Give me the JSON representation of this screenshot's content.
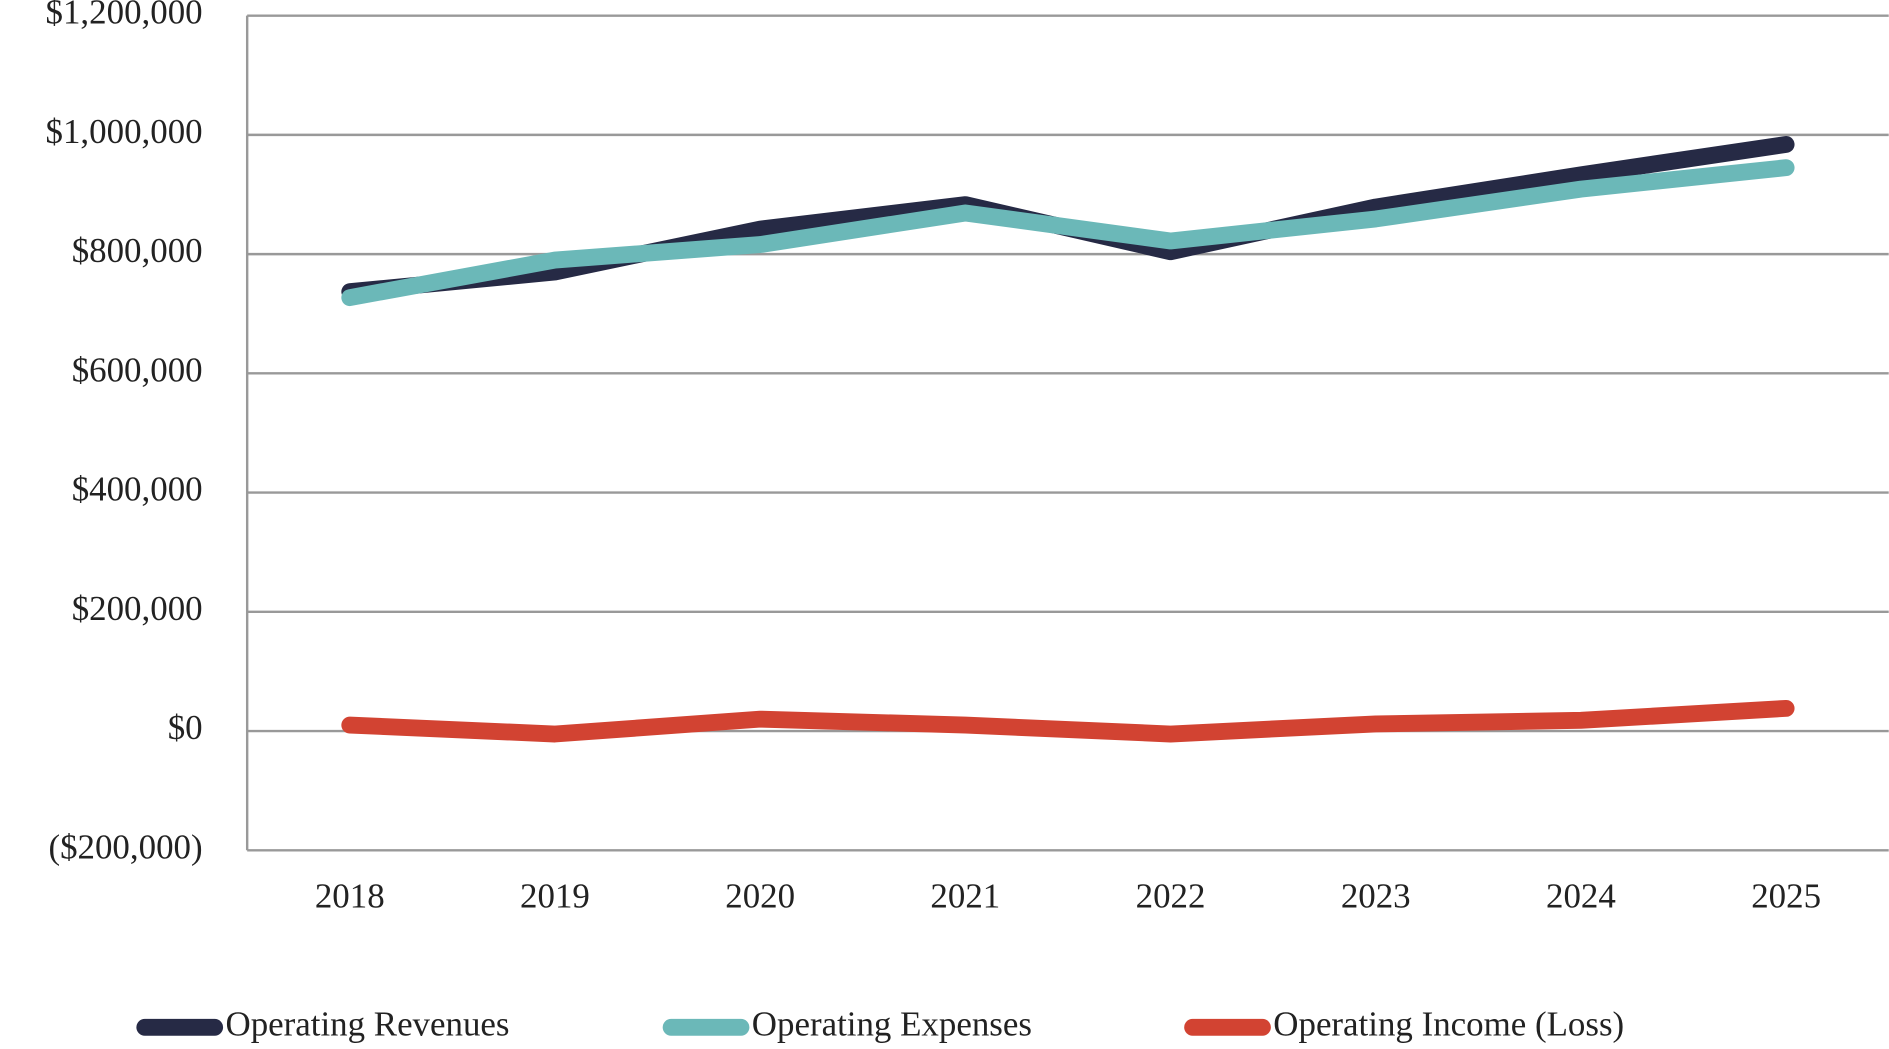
{
  "chart_data": {
    "type": "line",
    "categories": [
      "2018",
      "2019",
      "2020",
      "2021",
      "2022",
      "2023",
      "2024",
      "2025"
    ],
    "series": [
      {
        "name": "Operating Revenues",
        "color": "#262a45",
        "values": [
          737000,
          770000,
          842000,
          883000,
          804000,
          879000,
          933000,
          984000
        ]
      },
      {
        "name": "Operating Expenses",
        "color": "#6bb8b8",
        "values": [
          727000,
          790000,
          816000,
          869000,
          822000,
          859000,
          909000,
          945000
        ]
      },
      {
        "name": "Operating Income (Loss)",
        "color": "#d24332",
        "values": [
          10000,
          -5000,
          20000,
          10000,
          -5000,
          12000,
          18000,
          38000
        ]
      }
    ],
    "ylim": [
      -200000,
      1200000
    ],
    "yticks": [
      {
        "value": -200000,
        "label": "($200,000)"
      },
      {
        "value": 0,
        "label": "$0"
      },
      {
        "value": 200000,
        "label": "$200,000"
      },
      {
        "value": 400000,
        "label": "$400,000"
      },
      {
        "value": 600000,
        "label": "$600,000"
      },
      {
        "value": 800000,
        "label": "$800,000"
      },
      {
        "value": 1000000,
        "label": "$1,000,000"
      },
      {
        "value": 1200000,
        "label": "$1,200,000"
      }
    ],
    "grid": true,
    "legend": "bottom"
  }
}
